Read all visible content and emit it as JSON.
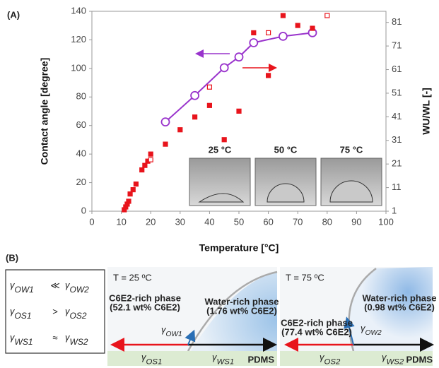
{
  "panel_labels": [
    "(A)",
    "(B)"
  ],
  "chart_data": {
    "type": "line",
    "x_label": "Temperature [°C]",
    "y_label": "Contact angle [degree]",
    "y2_label": "WU/WL [-]",
    "xlim": [
      0,
      100
    ],
    "xticks": [
      0,
      10,
      20,
      30,
      40,
      50,
      60,
      70,
      80,
      90,
      100
    ],
    "ylim": [
      0,
      140
    ],
    "yticks": [
      0,
      20,
      40,
      60,
      80,
      100,
      120,
      140
    ],
    "y2lim": [
      1,
      85.7
    ],
    "y2ticks": [
      1,
      11,
      21,
      31,
      41,
      51,
      61,
      71,
      81
    ],
    "series": [
      {
        "color": "#9933cc",
        "marker": "circle-open",
        "line": true,
        "x": [
          25,
          35,
          45,
          50,
          55,
          65,
          75
        ],
        "values": [
          62.5,
          81,
          100.5,
          108,
          118,
          122.5,
          125
        ]
      },
      {
        "color": "#e8141c",
        "axis": "y2",
        "marker": "square-filled",
        "line": false,
        "x": [
          11,
          11.5,
          12,
          12.5,
          13,
          14,
          15,
          17,
          18,
          19,
          20,
          25,
          30,
          35,
          40,
          45,
          50,
          55,
          60,
          65,
          70,
          75
        ],
        "values": [
          1.6,
          2.8,
          4.0,
          5.2,
          8.3,
          10.1,
          12.5,
          18.5,
          20.4,
          22.2,
          25.2,
          29.4,
          35.5,
          40.9,
          45.8,
          31.3,
          43.4,
          76.6,
          58.5,
          83.9,
          79.7,
          78.5
        ]
      },
      {
        "color": "#e8141c",
        "axis": "y2",
        "marker": "square-open",
        "line": false,
        "x": [
          20,
          40,
          60,
          80
        ],
        "values": [
          22.8,
          53.6,
          76.6,
          83.9
        ]
      }
    ],
    "insets": [
      "25 °C",
      "50 °C",
      "75 °C"
    ]
  },
  "panel_b": {
    "relations": [
      {
        "left": {
          "symbol": "γ",
          "sub": "OW1"
        },
        "op": "≪",
        "right": {
          "symbol": "γ",
          "sub": "OW2"
        }
      },
      {
        "left": {
          "symbol": "γ",
          "sub": "OS1"
        },
        "op": ">",
        "right": {
          "symbol": "γ",
          "sub": "OS2"
        }
      },
      {
        "left": {
          "symbol": "γ",
          "sub": "WS1"
        },
        "op": "≈",
        "right": {
          "symbol": "γ",
          "sub": "WS2"
        }
      }
    ],
    "diagrams": [
      {
        "temperature": "T = 25 ºC",
        "oil_phase": [
          "C6E2-rich phase",
          "(52.1 wt% C6E2)"
        ],
        "water_phase": [
          "Water-rich phase",
          "(1.76 wt% C6E2)"
        ],
        "ow": {
          "symbol": "γ",
          "sub": "OW1"
        },
        "os": {
          "symbol": "γ",
          "sub": "OS1"
        },
        "ws": {
          "symbol": "γ",
          "sub": "WS1"
        },
        "substrate": "PDMS"
      },
      {
        "temperature": "T = 75 ºC",
        "oil_phase": [
          "C6E2-rich phase",
          "(77.4 wt% C6E2)"
        ],
        "water_phase": [
          "Water-rich phase",
          "(0.98 wt% C6E2)"
        ],
        "ow": {
          "symbol": "γ",
          "sub": "OW2"
        },
        "os": {
          "symbol": "γ",
          "sub": "OS2"
        },
        "ws": {
          "symbol": "γ",
          "sub": "WS2"
        },
        "substrate": "PDMS"
      }
    ]
  }
}
